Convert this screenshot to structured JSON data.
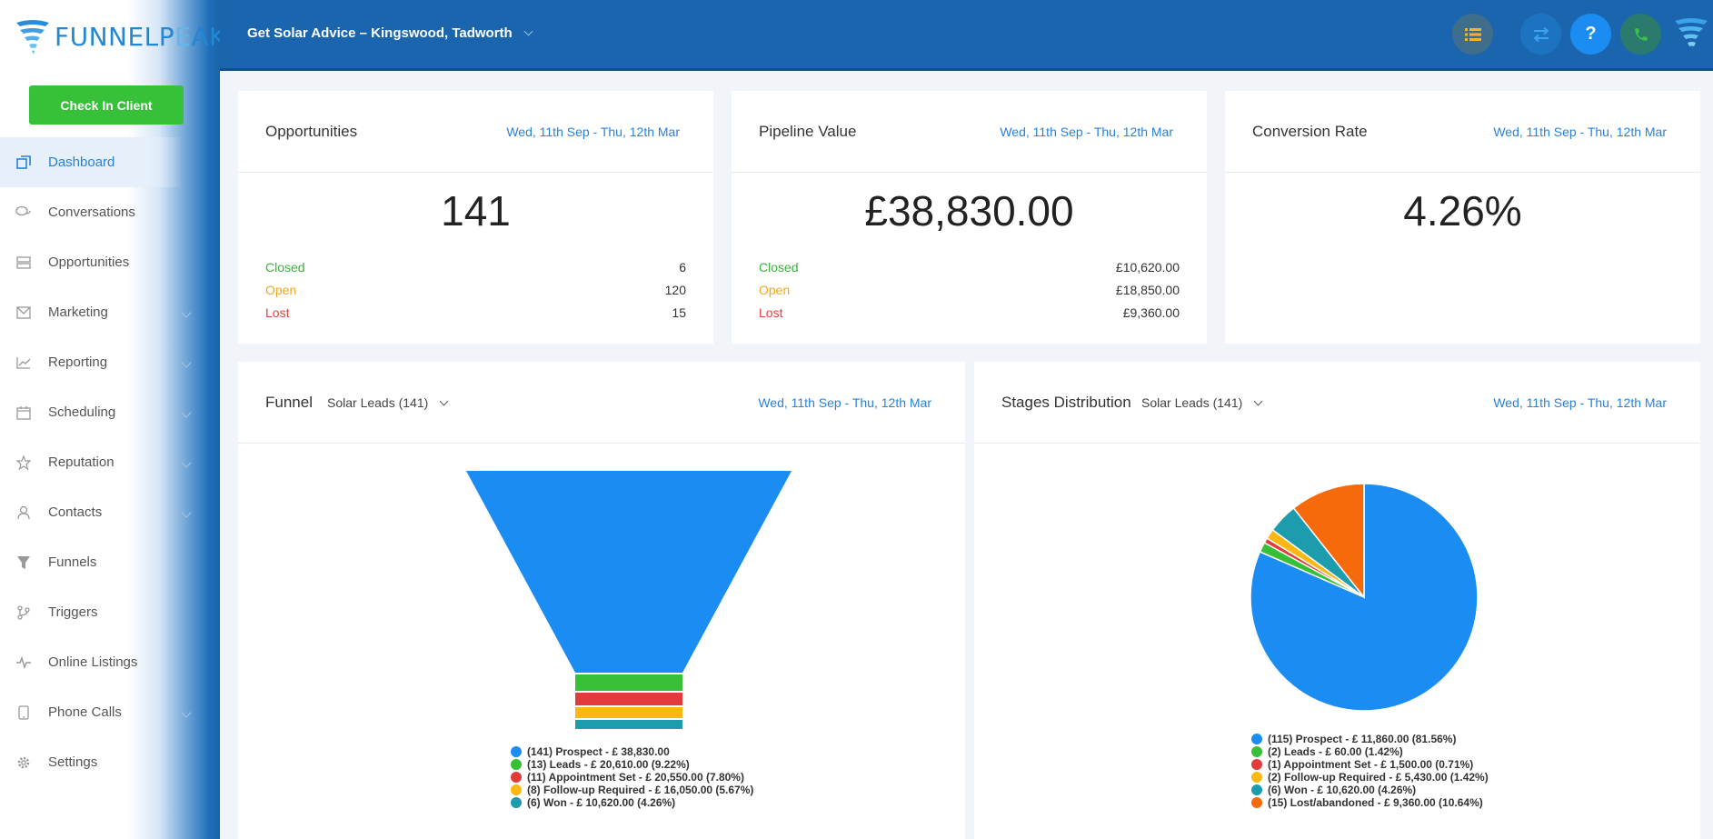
{
  "brand": {
    "name_part1": "FUNNELP",
    "name_part2": "E",
    "name_part3": "AK"
  },
  "sidebar": {
    "checkin_label": "Check In Client",
    "items": [
      {
        "label": "Dashboard",
        "icon": "dashboard-icon",
        "active": true,
        "chevron": false
      },
      {
        "label": "Conversations",
        "icon": "conversations-icon",
        "chevron": false
      },
      {
        "label": "Opportunities",
        "icon": "opportunities-icon",
        "chevron": false
      },
      {
        "label": "Marketing",
        "icon": "mail-icon",
        "chevron": true
      },
      {
        "label": "Reporting",
        "icon": "chart-icon",
        "chevron": true
      },
      {
        "label": "Scheduling",
        "icon": "calendar-icon",
        "chevron": true
      },
      {
        "label": "Reputation",
        "icon": "star-icon",
        "chevron": true
      },
      {
        "label": "Contacts",
        "icon": "user-icon",
        "chevron": true
      },
      {
        "label": "Funnels",
        "icon": "filter-icon",
        "chevron": false
      },
      {
        "label": "Triggers",
        "icon": "triggers-icon",
        "chevron": false
      },
      {
        "label": "Online Listings",
        "icon": "pulse-icon",
        "chevron": false
      },
      {
        "label": "Phone Calls",
        "icon": "phone-icon",
        "chevron": true
      },
      {
        "label": "Settings",
        "icon": "gear-icon",
        "chevron": false
      }
    ]
  },
  "topbar": {
    "location": "Get Solar Advice – Kingswood, Tadworth",
    "buttons": [
      "list-icon",
      "swap-icon",
      "help-icon",
      "phone-icon",
      "logo-icon"
    ],
    "help_glyph": "?"
  },
  "cards": {
    "opportunities": {
      "title": "Opportunities",
      "date": "Wed, 11th Sep - Thu, 12th Mar",
      "value": "141",
      "rows": [
        {
          "label": "Closed",
          "value": "6"
        },
        {
          "label": "Open",
          "value": "120"
        },
        {
          "label": "Lost",
          "value": "15"
        }
      ]
    },
    "pipeline": {
      "title": "Pipeline Value",
      "date": "Wed, 11th Sep - Thu, 12th Mar",
      "value": "£38,830.00",
      "rows": [
        {
          "label": "Closed",
          "value": "£10,620.00"
        },
        {
          "label": "Open",
          "value": "£18,850.00"
        },
        {
          "label": "Lost",
          "value": "£9,360.00"
        }
      ]
    },
    "conversion": {
      "title": "Conversion Rate",
      "date": "Wed, 11th Sep - Thu, 12th Mar",
      "value": "4.26%"
    },
    "funnel": {
      "title": "Funnel",
      "selector": "Solar Leads (141)",
      "date": "Wed, 11th Sep - Thu, 12th Mar"
    },
    "stages": {
      "title": "Stages Distribution",
      "selector": "Solar Leads (141)",
      "date": "Wed, 11th Sep - Thu, 12th Mar"
    }
  },
  "chart_data": [
    {
      "type": "funnel",
      "categories": [
        "Prospect",
        "Leads",
        "Appointment Set",
        "Follow-up Required",
        "Won"
      ],
      "counts": [
        141,
        13,
        11,
        8,
        6
      ],
      "values": [
        38830,
        20610,
        20550,
        16050,
        10620
      ],
      "colors": [
        "#1b8cf2",
        "#37c037",
        "#e23b3b",
        "#fbb811",
        "#1c9cad"
      ],
      "legend": [
        "(141) Prospect - £ 38,830.00",
        "(13) Leads - £ 20,610.00 (9.22%)",
        "(11) Appointment Set - £ 20,550.00 (7.80%)",
        "(8) Follow-up Required - £ 16,050.00 (5.67%)",
        "(6) Won - £ 10,620.00 (4.26%)"
      ]
    },
    {
      "type": "pie",
      "categories": [
        "Prospect",
        "Leads",
        "Appointment Set",
        "Follow-up Required",
        "Won",
        "Lost/abandoned"
      ],
      "values": [
        81.56,
        1.42,
        0.71,
        1.42,
        4.26,
        10.64
      ],
      "colors": [
        "#1b8cf2",
        "#37c037",
        "#e23b3b",
        "#fbb811",
        "#1c9cad",
        "#f76a0c"
      ],
      "legend": [
        "(115) Prospect - £ 11,860.00 (81.56%)",
        "(2) Leads - £ 60.00 (1.42%)",
        "(1) Appointment Set - £ 1,500.00 (0.71%)",
        "(2) Follow-up Required - £ 5,430.00 (1.42%)",
        "(6) Won - £ 10,620.00 (4.26%)",
        "(15) Lost/abandoned - £ 9,360.00 (10.64%)"
      ]
    }
  ]
}
